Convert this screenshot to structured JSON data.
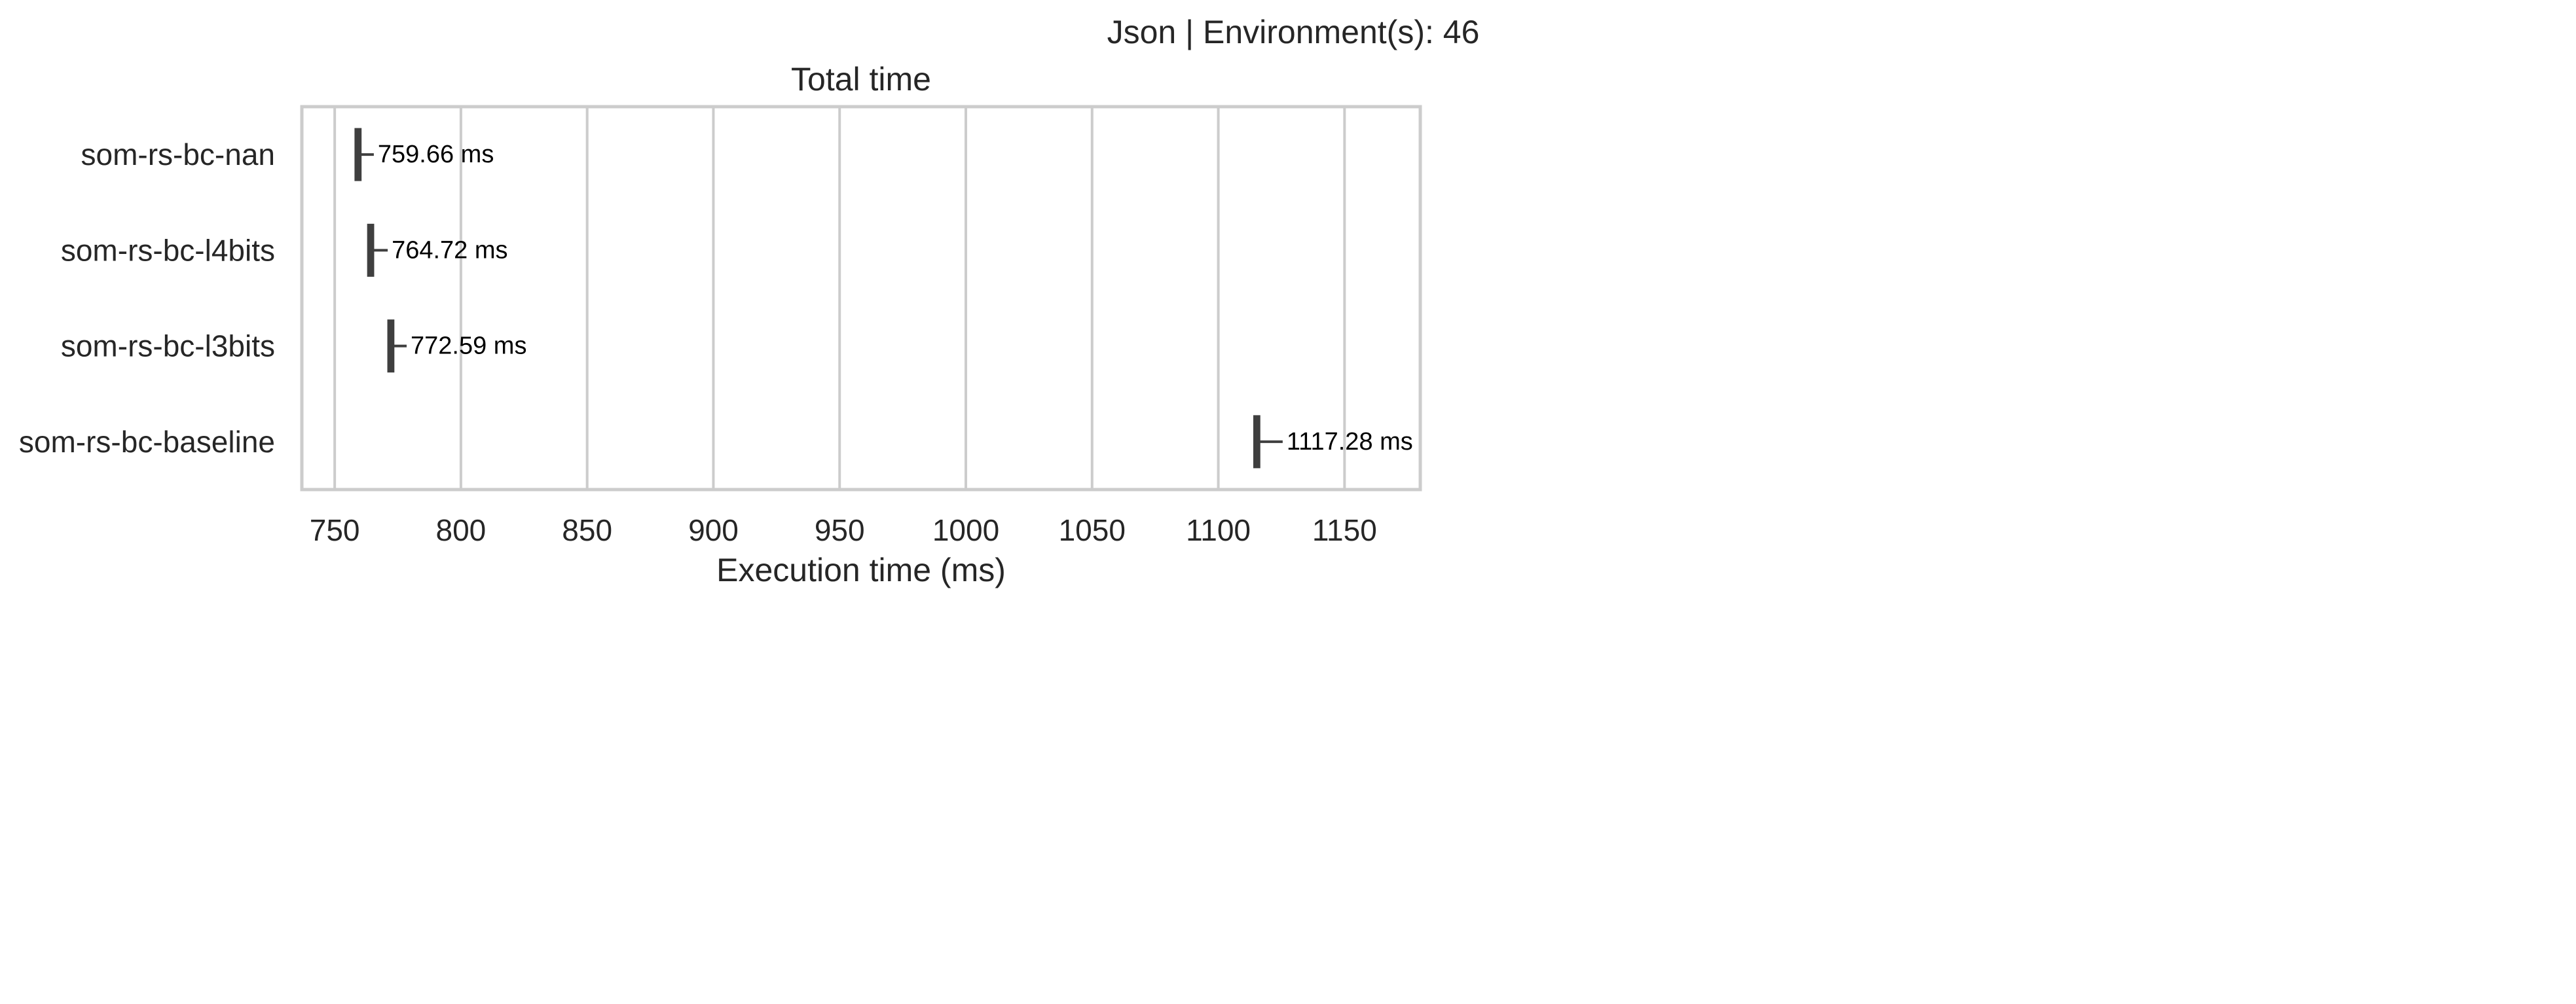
{
  "chart_data": {
    "type": "box",
    "suptitle": "Json | Environment(s): 46",
    "title": "Total time",
    "xlabel": "Execution time (ms)",
    "ylabel": "",
    "xlim": [
      737,
      1180
    ],
    "xticks": [
      750,
      800,
      850,
      900,
      950,
      1000,
      1050,
      1100,
      1150
    ],
    "grid": true,
    "categories": [
      "som-rs-bc-nan",
      "som-rs-bc-l4bits",
      "som-rs-bc-l3bits",
      "som-rs-bc-baseline"
    ],
    "series": [
      {
        "category": "som-rs-bc-nan",
        "q1": 758.5,
        "median": 759.5,
        "q3": 760.0,
        "whisker_high": 765.5,
        "label": "759.66 ms"
      },
      {
        "category": "som-rs-bc-l4bits",
        "q1": 763.5,
        "median": 764.5,
        "q3": 765.0,
        "whisker_high": 771.0,
        "label": "764.72 ms"
      },
      {
        "category": "som-rs-bc-l3bits",
        "q1": 771.5,
        "median": 772.5,
        "q3": 773.0,
        "whisker_high": 778.5,
        "label": "772.59 ms"
      },
      {
        "category": "som-rs-bc-baseline",
        "q1": 1114.5,
        "median": 1115.5,
        "q3": 1116.0,
        "whisker_high": 1125.5,
        "label": "1117.28 ms"
      }
    ],
    "colors": {
      "box": "#3f3f3f",
      "grid": "#cccccc",
      "text": "#262626",
      "label": "#000000"
    }
  }
}
